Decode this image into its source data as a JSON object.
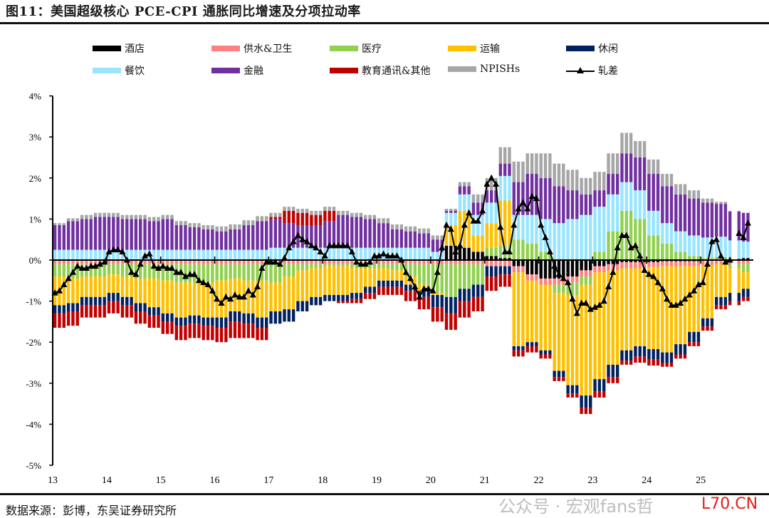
{
  "title": "图11：美国超级核心 PCE-CPI 通胀同比增速及分项拉动率",
  "source": "数据来源：彭博，东吴证券研究所",
  "watermark": "公众号 · 宏观fans哲",
  "watermark2": "L70.CN",
  "chart_data": {
    "type": "bar",
    "subtype": "stacked bar + line",
    "title": "美国超级核心 PCE-CPI 通胀同比增速及分项拉动率",
    "ylabel": "",
    "xlabel": "",
    "ylim": [
      -5,
      4
    ],
    "yticks": [
      "4%",
      "3%",
      "2%",
      "1%",
      "0%",
      "-1%",
      "-2%",
      "-3%",
      "-4%",
      "-5%"
    ],
    "yvalues": [
      4,
      3,
      2,
      1,
      0,
      -1,
      -2,
      -3,
      -4,
      -5
    ],
    "xticks": [
      "13",
      "14",
      "15",
      "16",
      "17",
      "18",
      "19",
      "20",
      "21",
      "22",
      "23",
      "24",
      "25"
    ],
    "bar_frequency": "quarterly (2013Q1-2025Q4), drawn per month",
    "legend_placement": "top",
    "series": [
      {
        "name": "酒店",
        "color": "#000000",
        "values": [
          0,
          0,
          0,
          0,
          0,
          0,
          0,
          0,
          0,
          0,
          0,
          0,
          0,
          0,
          0,
          0,
          0,
          0,
          0,
          0,
          0,
          0,
          0,
          0,
          0,
          0,
          0,
          0,
          0,
          0.35,
          0.3,
          0.2,
          0.1,
          0.05,
          -0.15,
          -0.35,
          -0.45,
          -0.45,
          -0.4,
          -0.25,
          -0.15,
          -0.1,
          -0.05,
          -0.05,
          -0.05,
          -0.03,
          -0.03,
          -0.03,
          -0.02,
          0.02,
          0.03,
          0.05
        ]
      },
      {
        "name": "供水&卫生",
        "color": "#ff8080",
        "values": [
          -0.1,
          -0.1,
          -0.1,
          -0.1,
          -0.1,
          -0.1,
          -0.1,
          -0.1,
          -0.1,
          -0.1,
          -0.1,
          -0.1,
          -0.1,
          -0.1,
          -0.1,
          -0.1,
          -0.1,
          -0.1,
          -0.1,
          -0.1,
          -0.1,
          -0.1,
          -0.1,
          -0.1,
          -0.1,
          -0.1,
          -0.1,
          -0.1,
          -0.1,
          -0.1,
          -0.1,
          -0.1,
          -0.15,
          -0.15,
          -0.15,
          -0.15,
          -0.15,
          -0.15,
          -0.15,
          -0.15,
          -0.15,
          -0.15,
          -0.15,
          -0.15,
          -0.12,
          -0.12,
          -0.12,
          -0.12,
          -0.1,
          -0.1,
          -0.1,
          -0.1
        ]
      },
      {
        "name": "医疗",
        "color": "#92d050",
        "values": [
          -0.3,
          -0.35,
          -0.3,
          -0.3,
          -0.25,
          -0.3,
          -0.35,
          -0.35,
          -0.4,
          -0.45,
          -0.45,
          -0.45,
          -0.4,
          -0.35,
          -0.4,
          -0.4,
          -0.45,
          -0.3,
          -0.15,
          -0.1,
          -0.05,
          -0.05,
          -0.1,
          -0.1,
          -0.1,
          -0.15,
          -0.3,
          -0.5,
          -0.7,
          -0.8,
          -0.6,
          -0.5,
          0.2,
          0.3,
          0.5,
          0.4,
          0.2,
          -0.2,
          -0.3,
          -0.2,
          0.2,
          0.7,
          1.2,
          1.0,
          0.6,
          0.4,
          0.2,
          0.1,
          0.05,
          0.05,
          -0.1,
          -0.2
        ]
      },
      {
        "name": "运输",
        "color": "#ffc000",
        "values": [
          -0.7,
          -0.6,
          -0.5,
          -0.5,
          -0.45,
          -0.5,
          -0.6,
          -0.7,
          -0.8,
          -0.85,
          -0.8,
          -0.85,
          -0.9,
          -0.8,
          -0.8,
          -0.9,
          -0.7,
          -0.8,
          -0.75,
          -0.7,
          -0.7,
          -0.7,
          -0.6,
          -0.45,
          -0.3,
          -0.25,
          -0.2,
          -0.15,
          -0.05,
          0.5,
          0.9,
          0.4,
          0.6,
          1.1,
          -1.8,
          -1.5,
          -1.6,
          -1.9,
          -2.2,
          -2.7,
          -2.6,
          -2.3,
          -2.0,
          -1.9,
          -2.0,
          -2.1,
          -1.9,
          -1.6,
          -1.3,
          -0.8,
          -0.6,
          -0.4
        ]
      },
      {
        "name": "休闲",
        "color": "#002060",
        "values": [
          -0.2,
          -0.2,
          -0.2,
          -0.2,
          -0.2,
          -0.2,
          -0.2,
          -0.2,
          -0.2,
          -0.2,
          -0.2,
          -0.2,
          -0.25,
          -0.25,
          -0.25,
          -0.25,
          -0.3,
          -0.3,
          -0.25,
          -0.2,
          -0.15,
          -0.15,
          -0.15,
          -0.15,
          -0.15,
          -0.15,
          -0.15,
          -0.15,
          -0.3,
          -0.4,
          -0.3,
          -0.3,
          -0.25,
          -0.2,
          -0.1,
          -0.1,
          -0.1,
          -0.15,
          -0.2,
          -0.3,
          -0.3,
          -0.3,
          -0.25,
          -0.25,
          -0.25,
          -0.25,
          -0.25,
          -0.25,
          -0.2,
          -0.2,
          -0.2,
          -0.2
        ]
      },
      {
        "name": "餐饮",
        "color": "#99e5ff",
        "values": [
          0.25,
          0.25,
          0.25,
          0.25,
          0.25,
          0.25,
          0.25,
          0.25,
          0.25,
          0.25,
          0.25,
          0.25,
          0.25,
          0.25,
          0.25,
          0.25,
          0.3,
          0.3,
          0.3,
          0.3,
          0.3,
          0.3,
          0.3,
          0.3,
          0.3,
          0.3,
          0.3,
          0.3,
          0.2,
          0.3,
          0.4,
          0.5,
          0.5,
          0.6,
          0.6,
          0.7,
          0.8,
          0.9,
          1.0,
          1.1,
          1.1,
          0.9,
          0.7,
          0.7,
          0.6,
          0.5,
          0.5,
          0.5,
          0.5,
          0.5,
          0.45,
          0.4
        ]
      },
      {
        "name": "金融",
        "color": "#7030a0",
        "values": [
          0.6,
          0.7,
          0.75,
          0.8,
          0.8,
          0.75,
          0.75,
          0.7,
          0.75,
          0.6,
          0.55,
          0.5,
          0.45,
          0.5,
          0.6,
          0.7,
          0.7,
          0.6,
          0.55,
          0.55,
          0.65,
          0.8,
          0.75,
          0.7,
          0.6,
          0.45,
          0.4,
          0.35,
          0.3,
          0.05,
          0.2,
          0.3,
          0.3,
          0.3,
          0.8,
          1.0,
          1.0,
          0.9,
          0.7,
          0.5,
          0.4,
          0.5,
          0.7,
          0.8,
          0.9,
          0.9,
          0.9,
          0.9,
          0.85,
          0.8,
          0.7,
          0.7
        ]
      },
      {
        "name": "教育通讯&其他",
        "color": "#c00000",
        "values": [
          -0.35,
          -0.35,
          -0.3,
          -0.3,
          -0.3,
          -0.3,
          -0.3,
          -0.3,
          -0.3,
          -0.35,
          -0.35,
          -0.35,
          -0.35,
          -0.4,
          -0.35,
          -0.3,
          0.05,
          0.3,
          0.3,
          0.25,
          0.25,
          -0.05,
          -0.1,
          -0.15,
          -0.2,
          -0.2,
          -0.25,
          -0.3,
          -0.35,
          -0.4,
          -0.4,
          -0.35,
          -0.35,
          -0.3,
          -0.15,
          -0.15,
          -0.1,
          -0.1,
          -0.1,
          -0.15,
          -0.15,
          -0.15,
          -0.1,
          -0.15,
          -0.15,
          -0.1,
          -0.1,
          -0.1,
          -0.1,
          -0.1,
          -0.1,
          -0.1
        ]
      },
      {
        "name": "NPISHs",
        "color": "#a6a6a6",
        "values": [
          0.05,
          0.07,
          0.1,
          0.1,
          0.1,
          0.1,
          0.1,
          0.1,
          0.1,
          0.1,
          0.1,
          0.1,
          0.12,
          0.12,
          0.12,
          0.12,
          0.1,
          0.1,
          0.1,
          0.1,
          0.1,
          0.1,
          0.1,
          0.1,
          0.12,
          0.12,
          0.12,
          0.12,
          0.1,
          0.05,
          0.1,
          0.2,
          0.3,
          0.4,
          0.5,
          0.5,
          0.6,
          0.55,
          0.5,
          0.4,
          0.45,
          0.5,
          0.5,
          0.4,
          0.35,
          0.3,
          0.25,
          0.2,
          0.1,
          0.05,
          0.02,
          0
        ]
      }
    ],
    "line": {
      "name": "轧差",
      "color": "#000000",
      "frequency": "monthly from 2013-01",
      "values": [
        -0.8,
        -0.75,
        -0.6,
        -0.45,
        -0.3,
        -0.15,
        -0.2,
        -0.2,
        -0.15,
        -0.15,
        -0.1,
        -0.05,
        0.2,
        0.25,
        0.25,
        0.2,
        0.0,
        -0.3,
        -0.35,
        -0.1,
        0.1,
        0.15,
        -0.15,
        -0.2,
        -0.15,
        -0.2,
        -0.2,
        -0.3,
        -0.3,
        -0.4,
        -0.35,
        -0.35,
        -0.5,
        -0.55,
        -0.6,
        -0.75,
        -0.95,
        -1.05,
        -0.9,
        -0.95,
        -0.85,
        -0.9,
        -0.9,
        -0.75,
        -0.85,
        -0.65,
        -0.2,
        -0.05,
        -0.05,
        -0.05,
        -0.1,
        0.05,
        0.3,
        0.45,
        0.6,
        0.5,
        0.45,
        0.35,
        0.3,
        0.2,
        0.1,
        0.35,
        0.35,
        0.35,
        0.35,
        0.35,
        0.2,
        -0.05,
        -0.1,
        -0.1,
        -0.05,
        0.1,
        0.1,
        0.15,
        0.1,
        0.1,
        0.1,
        0.0,
        -0.3,
        -0.45,
        -0.65,
        -0.9,
        -0.7,
        -0.7,
        -0.75,
        -0.3,
        0.3,
        0.85,
        0.75,
        0.2,
        0.35,
        0.85,
        1.15,
        0.95,
        0.95,
        1.2,
        1.85,
        2.0,
        1.85,
        0.8,
        0.2,
        0.2,
        0.85,
        1.25,
        1.4,
        1.25,
        1.55,
        1.5,
        0.85,
        0.55,
        0.2,
        -0.15,
        -0.35,
        -0.45,
        -0.55,
        -0.95,
        -1.3,
        -1.05,
        -1.05,
        -1.2,
        -1.15,
        -1.1,
        -1.0,
        -0.65,
        -0.3,
        0.3,
        0.6,
        0.6,
        0.3,
        0.35,
        0.1,
        -0.25,
        -0.35,
        -0.4,
        -0.55,
        -0.7,
        -0.95,
        -1.1,
        -1.1,
        -1.05,
        -0.95,
        -0.85,
        -0.75,
        -0.6,
        -0.55,
        -0.1,
        0.45,
        0.5,
        0.1,
        -0.05,
        0.0,
        null,
        0.65,
        0.55,
        0.9
      ]
    }
  }
}
